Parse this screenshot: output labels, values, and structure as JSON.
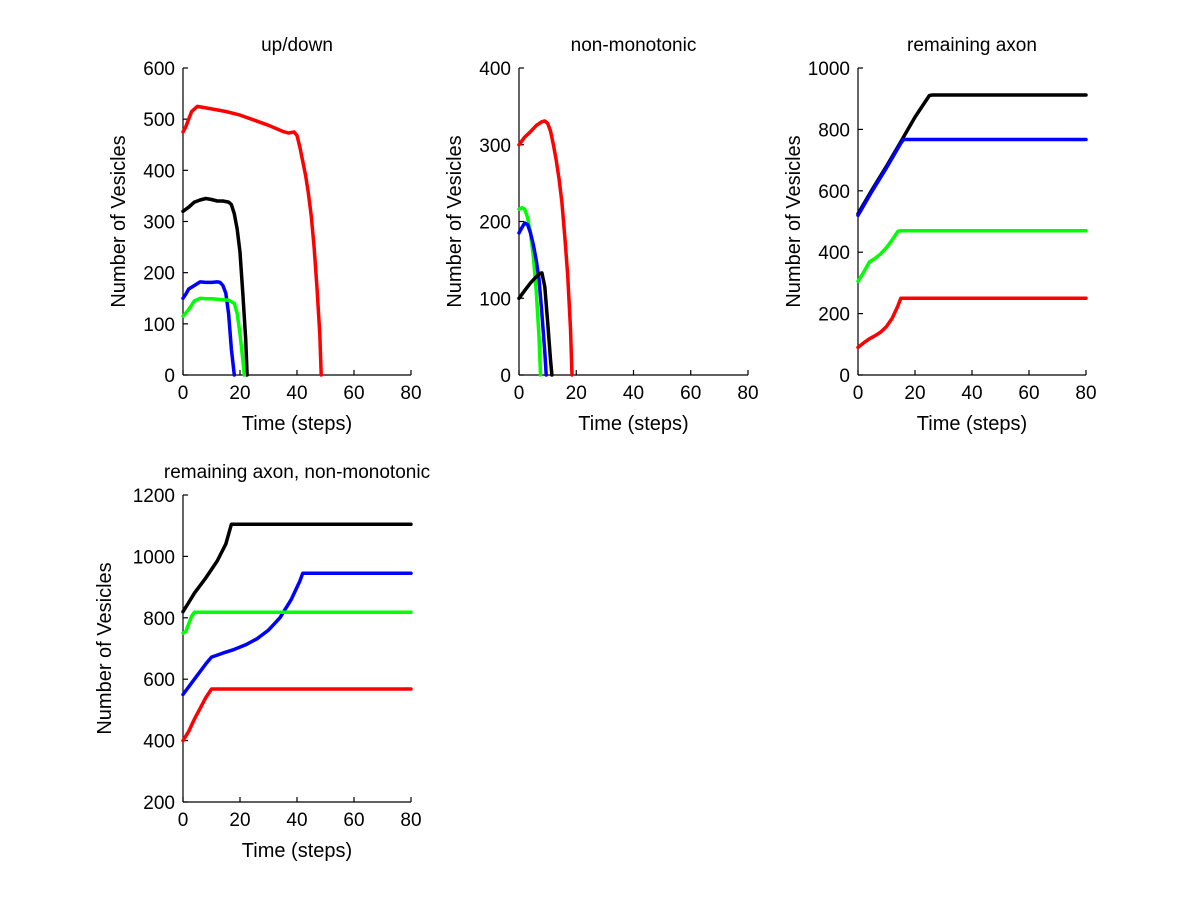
{
  "chart_data": [
    {
      "type": "line",
      "title": "up/down",
      "xlabel": "Time (steps)",
      "ylabel": "Number of Vesicles",
      "xlim": [
        0,
        80
      ],
      "ylim": [
        0,
        600
      ],
      "xticks": [
        0,
        20,
        40,
        60,
        80
      ],
      "yticks": [
        0,
        100,
        200,
        300,
        400,
        500,
        600
      ],
      "series": [
        {
          "name": "red",
          "color": "#ff0000",
          "points": [
            [
              0,
              475
            ],
            [
              1,
              485
            ],
            [
              3,
              515
            ],
            [
              5,
              525
            ],
            [
              10,
              520
            ],
            [
              15,
              515
            ],
            [
              20,
              508
            ],
            [
              25,
              498
            ],
            [
              30,
              488
            ],
            [
              35,
              476
            ],
            [
              37,
              473
            ],
            [
              39,
              475
            ],
            [
              40,
              468
            ],
            [
              41,
              445
            ],
            [
              42,
              418
            ],
            [
              43,
              390
            ],
            [
              44,
              355
            ],
            [
              45,
              310
            ],
            [
              46,
              250
            ],
            [
              47,
              170
            ],
            [
              48,
              80
            ],
            [
              48.5,
              0
            ]
          ]
        },
        {
          "name": "black",
          "color": "#000000",
          "points": [
            [
              0,
              320
            ],
            [
              2,
              328
            ],
            [
              4,
              338
            ],
            [
              6,
              342
            ],
            [
              8,
              345
            ],
            [
              10,
              343
            ],
            [
              12,
              340
            ],
            [
              14,
              340
            ],
            [
              16,
              338
            ],
            [
              17,
              333
            ],
            [
              18,
              315
            ],
            [
              19,
              285
            ],
            [
              20,
              240
            ],
            [
              21,
              160
            ],
            [
              22,
              70
            ],
            [
              22.5,
              0
            ]
          ]
        },
        {
          "name": "blue",
          "color": "#0000ff",
          "points": [
            [
              0,
              150
            ],
            [
              1,
              158
            ],
            [
              2,
              168
            ],
            [
              4,
              175
            ],
            [
              6,
              182
            ],
            [
              8,
              181
            ],
            [
              10,
              181
            ],
            [
              12,
              182
            ],
            [
              13,
              181
            ],
            [
              14,
              175
            ],
            [
              15,
              160
            ],
            [
              16,
              120
            ],
            [
              17,
              50
            ],
            [
              18,
              0
            ]
          ]
        },
        {
          "name": "green",
          "color": "#00ff00",
          "points": [
            [
              0,
              115
            ],
            [
              2,
              128
            ],
            [
              4,
              145
            ],
            [
              6,
              150
            ],
            [
              8,
              149
            ],
            [
              10,
              149
            ],
            [
              12,
              148
            ],
            [
              14,
              147
            ],
            [
              16,
              146
            ],
            [
              18,
              140
            ],
            [
              19,
              120
            ],
            [
              20,
              80
            ],
            [
              21,
              30
            ],
            [
              21.5,
              0
            ]
          ]
        }
      ]
    },
    {
      "type": "line",
      "title": "non-monotonic",
      "xlabel": "Time (steps)",
      "ylabel": "Number of Vesicles",
      "xlim": [
        0,
        80
      ],
      "ylim": [
        0,
        400
      ],
      "xticks": [
        0,
        20,
        40,
        60,
        80
      ],
      "yticks": [
        0,
        100,
        200,
        300,
        400
      ],
      "series": [
        {
          "name": "red",
          "color": "#ff0000",
          "points": [
            [
              0,
              300
            ],
            [
              2,
              310
            ],
            [
              4,
              317
            ],
            [
              6,
              325
            ],
            [
              8,
              330
            ],
            [
              9,
              331
            ],
            [
              10,
              328
            ],
            [
              11,
              318
            ],
            [
              12,
              300
            ],
            [
              13,
              280
            ],
            [
              14,
              255
            ],
            [
              15,
              225
            ],
            [
              16,
              180
            ],
            [
              17,
              130
            ],
            [
              18,
              60
            ],
            [
              18.5,
              0
            ]
          ]
        },
        {
          "name": "green",
          "color": "#00ff00",
          "points": [
            [
              0,
              216
            ],
            [
              1,
              218
            ],
            [
              2,
              216
            ],
            [
              3,
              205
            ],
            [
              4,
              185
            ],
            [
              5,
              155
            ],
            [
              6,
              110
            ],
            [
              7,
              50
            ],
            [
              7.5,
              0
            ]
          ]
        },
        {
          "name": "blue",
          "color": "#0000ff",
          "points": [
            [
              0,
              185
            ],
            [
              1,
              192
            ],
            [
              2,
              198
            ],
            [
              3,
              196
            ],
            [
              4,
              185
            ],
            [
              5,
              170
            ],
            [
              6,
              150
            ],
            [
              7,
              125
            ],
            [
              8,
              80
            ],
            [
              9,
              30
            ],
            [
              9.5,
              0
            ]
          ]
        },
        {
          "name": "black",
          "color": "#000000",
          "points": [
            [
              0,
              100
            ],
            [
              2,
              110
            ],
            [
              4,
              120
            ],
            [
              6,
              128
            ],
            [
              7,
              132
            ],
            [
              8,
              133
            ],
            [
              9,
              115
            ],
            [
              10,
              70
            ],
            [
              11,
              20
            ],
            [
              11.5,
              0
            ]
          ]
        }
      ]
    },
    {
      "type": "line",
      "title": "remaining axon",
      "xlabel": "Time (steps)",
      "ylabel": "Number of Vesicles",
      "xlim": [
        0,
        80
      ],
      "ylim": [
        0,
        1000
      ],
      "xticks": [
        0,
        20,
        40,
        60,
        80
      ],
      "yticks": [
        0,
        200,
        400,
        600,
        800,
        1000
      ],
      "series": [
        {
          "name": "black",
          "color": "#000000",
          "points": [
            [
              0,
              525
            ],
            [
              5,
              605
            ],
            [
              10,
              680
            ],
            [
              15,
              760
            ],
            [
              20,
              840
            ],
            [
              25,
              910
            ],
            [
              26,
              912
            ],
            [
              80,
              912
            ]
          ]
        },
        {
          "name": "blue",
          "color": "#0000ff",
          "points": [
            [
              0,
              520
            ],
            [
              5,
              600
            ],
            [
              10,
              675
            ],
            [
              15,
              755
            ],
            [
              16,
              767
            ],
            [
              80,
              767
            ]
          ]
        },
        {
          "name": "green",
          "color": "#00ff00",
          "points": [
            [
              0,
              305
            ],
            [
              2,
              335
            ],
            [
              4,
              368
            ],
            [
              6,
              380
            ],
            [
              8,
              395
            ],
            [
              10,
              415
            ],
            [
              12,
              440
            ],
            [
              14,
              468
            ],
            [
              15,
              470
            ],
            [
              80,
              470
            ]
          ]
        },
        {
          "name": "red",
          "color": "#ff0000",
          "points": [
            [
              0,
              90
            ],
            [
              2,
              105
            ],
            [
              4,
              118
            ],
            [
              6,
              128
            ],
            [
              8,
              140
            ],
            [
              10,
              158
            ],
            [
              12,
              185
            ],
            [
              14,
              225
            ],
            [
              15,
              250
            ],
            [
              80,
              250
            ]
          ]
        }
      ]
    },
    {
      "type": "line",
      "title": "remaining axon, non-monotonic",
      "xlabel": "Time (steps)",
      "ylabel": "Number of Vesicles",
      "xlim": [
        0,
        80
      ],
      "ylim": [
        200,
        1200
      ],
      "xticks": [
        0,
        20,
        40,
        60,
        80
      ],
      "yticks": [
        200,
        400,
        600,
        800,
        1000,
        1200
      ],
      "series": [
        {
          "name": "black",
          "color": "#000000",
          "points": [
            [
              0,
              820
            ],
            [
              2,
              850
            ],
            [
              4,
              880
            ],
            [
              8,
              930
            ],
            [
              12,
              985
            ],
            [
              15,
              1040
            ],
            [
              17,
              1105
            ],
            [
              80,
              1105
            ]
          ]
        },
        {
          "name": "blue",
          "color": "#0000ff",
          "points": [
            [
              0,
              550
            ],
            [
              4,
              600
            ],
            [
              8,
              650
            ],
            [
              10,
              672
            ],
            [
              14,
              685
            ],
            [
              18,
              697
            ],
            [
              22,
              712
            ],
            [
              26,
              732
            ],
            [
              30,
              760
            ],
            [
              34,
              800
            ],
            [
              38,
              860
            ],
            [
              41,
              920
            ],
            [
              42,
              945
            ],
            [
              80,
              945
            ]
          ]
        },
        {
          "name": "green",
          "color": "#00ff00",
          "points": [
            [
              0,
              750
            ],
            [
              1,
              755
            ],
            [
              2,
              780
            ],
            [
              3,
              805
            ],
            [
              4,
              818
            ],
            [
              80,
              818
            ]
          ]
        },
        {
          "name": "red",
          "color": "#ff0000",
          "points": [
            [
              0,
              400
            ],
            [
              2,
              430
            ],
            [
              4,
              470
            ],
            [
              6,
              505
            ],
            [
              8,
              540
            ],
            [
              10,
              568
            ],
            [
              80,
              568
            ]
          ]
        }
      ]
    }
  ]
}
